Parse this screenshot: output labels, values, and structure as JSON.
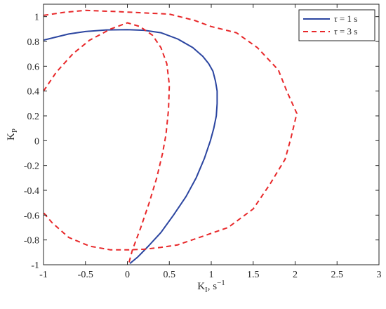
{
  "chart_data": {
    "type": "line",
    "title": "",
    "xlabel": "K",
    "xlabel_sub": "I",
    "xlabel_suffix": ", s",
    "xlabel_sup": "−1",
    "ylabel": "K",
    "ylabel_sub": "P",
    "xlim": [
      -1,
      3
    ],
    "ylim": [
      -1,
      1.1
    ],
    "xticks": [
      -1,
      -0.5,
      0,
      0.5,
      1,
      1.5,
      2,
      2.5,
      3
    ],
    "xtick_labels": [
      "-1",
      "-0.5",
      "0",
      "0.5",
      "1",
      "1.5",
      "2",
      "2.5",
      "3"
    ],
    "yticks": [
      -1,
      -0.8,
      -0.6,
      -0.4,
      -0.2,
      0,
      0.2,
      0.4,
      0.6,
      0.8,
      1
    ],
    "ytick_labels": [
      "-1",
      "-0.8",
      "-0.6",
      "-0.4",
      "-0.2",
      "0",
      "0.2",
      "0.4",
      "0.6",
      "0.8",
      "1"
    ],
    "grid": false,
    "legend_position": "top-right",
    "legend": [
      {
        "symbol": "τ",
        "text": " = 1 s",
        "color": "#2b45a0",
        "style": "solid"
      },
      {
        "symbol": "τ",
        "text": " = 3 s",
        "color": "#e8282a",
        "style": "dashed"
      }
    ],
    "series": [
      {
        "name": "τ = 1 s",
        "color": "#2b45a0",
        "style": "solid",
        "points": [
          [
            -1.0,
            0.81
          ],
          [
            -0.7,
            0.86
          ],
          [
            -0.5,
            0.88
          ],
          [
            -0.25,
            0.893
          ],
          [
            0.0,
            0.895
          ],
          [
            0.2,
            0.89
          ],
          [
            0.4,
            0.87
          ],
          [
            0.6,
            0.82
          ],
          [
            0.78,
            0.75
          ],
          [
            0.9,
            0.68
          ],
          [
            0.97,
            0.62
          ],
          [
            1.02,
            0.56
          ],
          [
            1.05,
            0.48
          ],
          [
            1.07,
            0.4
          ],
          [
            1.07,
            0.3
          ],
          [
            1.06,
            0.2
          ],
          [
            1.03,
            0.1
          ],
          [
            0.99,
            0.0
          ],
          [
            0.92,
            -0.14
          ],
          [
            0.82,
            -0.3
          ],
          [
            0.7,
            -0.45
          ],
          [
            0.55,
            -0.6
          ],
          [
            0.4,
            -0.74
          ],
          [
            0.25,
            -0.85
          ],
          [
            0.12,
            -0.94
          ],
          [
            0.03,
            -0.99
          ]
        ]
      },
      {
        "name": "τ = 3 s",
        "color": "#e8282a",
        "style": "dashed",
        "loops": [
          {
            "points": [
              [
                -1.0,
                0.4
              ],
              [
                -0.85,
                0.55
              ],
              [
                -0.65,
                0.7
              ],
              [
                -0.45,
                0.81
              ],
              [
                -0.2,
                0.9
              ],
              [
                0.0,
                0.95
              ],
              [
                0.15,
                0.92
              ],
              [
                0.3,
                0.85
              ],
              [
                0.4,
                0.75
              ],
              [
                0.47,
                0.62
              ],
              [
                0.5,
                0.45
              ],
              [
                0.49,
                0.25
              ],
              [
                0.46,
                0.05
              ],
              [
                0.42,
                -0.1
              ],
              [
                0.35,
                -0.3
              ],
              [
                0.26,
                -0.5
              ],
              [
                0.16,
                -0.7
              ],
              [
                0.06,
                -0.88
              ],
              [
                0.02,
                -0.98
              ]
            ]
          },
          {
            "points": [
              [
                -1.0,
                1.01
              ],
              [
                -0.75,
                1.035
              ],
              [
                -0.5,
                1.05
              ],
              [
                -0.1,
                1.04
              ],
              [
                0.2,
                1.03
              ],
              [
                0.5,
                1.02
              ],
              [
                0.8,
                0.97
              ],
              [
                1.0,
                0.92
              ],
              [
                1.3,
                0.87
              ],
              [
                1.55,
                0.75
              ],
              [
                1.8,
                0.57
              ],
              [
                1.9,
                0.4
              ],
              [
                2.02,
                0.22
              ],
              [
                1.95,
                0.02
              ],
              [
                1.88,
                -0.15
              ],
              [
                1.7,
                -0.35
              ],
              [
                1.5,
                -0.55
              ],
              [
                1.2,
                -0.7
              ],
              [
                0.9,
                -0.77
              ],
              [
                0.6,
                -0.84
              ],
              [
                0.4,
                -0.86
              ],
              [
                0.2,
                -0.875
              ],
              [
                0.0,
                -0.88
              ],
              [
                -0.2,
                -0.88
              ],
              [
                -0.45,
                -0.85
              ],
              [
                -0.7,
                -0.78
              ],
              [
                -0.9,
                -0.66
              ],
              [
                -1.0,
                -0.58
              ]
            ]
          }
        ]
      }
    ]
  }
}
